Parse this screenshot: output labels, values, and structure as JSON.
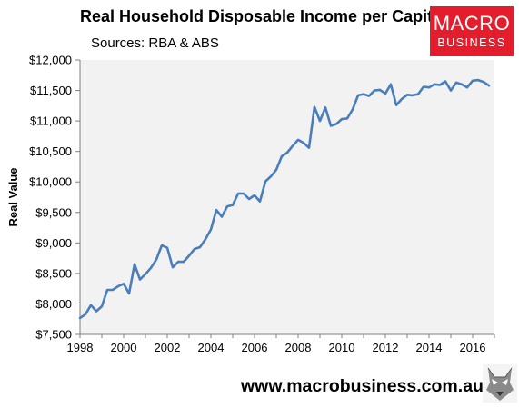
{
  "header": {
    "title": "Real Household Disposable Income per Capita",
    "sources": "Sources: RBA & ABS"
  },
  "logo": {
    "line1": "MACRO",
    "line2": "BUSINESS",
    "color": "#e31d2b"
  },
  "footer": {
    "url": "www.macrobusiness.com.au",
    "mascot_icon": "wolf-icon"
  },
  "chart_data": {
    "type": "line",
    "title": "Real Household Disposable Income per Capita",
    "xlabel": "",
    "ylabel": "Real Value",
    "xlim": [
      1998,
      2017
    ],
    "ylim": [
      7500,
      12000
    ],
    "x_ticks": [
      1998,
      2000,
      2002,
      2004,
      2006,
      2008,
      2010,
      2012,
      2014,
      2016
    ],
    "y_ticks": [
      7500,
      8000,
      8500,
      9000,
      9500,
      10000,
      10500,
      11000,
      11500,
      12000
    ],
    "y_tick_labels": [
      "$7,500",
      "$8,000",
      "$8,500",
      "$9,000",
      "$9,500",
      "$10,000",
      "$10,500",
      "$11,000",
      "$11,500",
      "$12,000"
    ],
    "grid": false,
    "legend": "none",
    "plot_background": "#f2f2f2",
    "line_color": "#4a7ebb",
    "series": [
      {
        "x": [
          1998.0,
          1998.25,
          1998.5,
          1998.75,
          1999.0,
          1999.25,
          1999.5,
          1999.75,
          2000.0,
          2000.25,
          2000.5,
          2000.75,
          2001.0,
          2001.25,
          2001.5,
          2001.75,
          2002.0,
          2002.25,
          2002.5,
          2002.75,
          2003.0,
          2003.25,
          2003.5,
          2003.75,
          2004.0,
          2004.25,
          2004.5,
          2004.75,
          2005.0,
          2005.25,
          2005.5,
          2005.75,
          2006.0,
          2006.25,
          2006.5,
          2006.75,
          2007.0,
          2007.25,
          2007.5,
          2007.75,
          2008.0,
          2008.25,
          2008.5,
          2008.75,
          2009.0,
          2009.25,
          2009.5,
          2009.75,
          2010.0,
          2010.25,
          2010.5,
          2010.75,
          2011.0,
          2011.25,
          2011.5,
          2011.75,
          2012.0,
          2012.25,
          2012.5,
          2012.75,
          2013.0,
          2013.25,
          2013.5,
          2013.75,
          2014.0,
          2014.25,
          2014.5,
          2014.75,
          2015.0,
          2015.25,
          2015.5,
          2015.75,
          2016.0,
          2016.25,
          2016.5,
          2016.75
        ],
        "y": [
          7770,
          7830,
          7980,
          7880,
          7960,
          8230,
          8230,
          8290,
          8330,
          8170,
          8650,
          8400,
          8490,
          8590,
          8730,
          8960,
          8920,
          8600,
          8690,
          8690,
          8790,
          8900,
          8930,
          9060,
          9220,
          9540,
          9430,
          9600,
          9620,
          9810,
          9810,
          9720,
          9780,
          9680,
          10010,
          10090,
          10200,
          10420,
          10480,
          10590,
          10690,
          10640,
          10560,
          11230,
          11000,
          11220,
          10920,
          10950,
          11030,
          11040,
          11190,
          11420,
          11440,
          11410,
          11500,
          11510,
          11450,
          11600,
          11260,
          11360,
          11430,
          11420,
          11440,
          11560,
          11550,
          11600,
          11590,
          11650,
          11500,
          11630,
          11600,
          11550,
          11660,
          11670,
          11640,
          11580
        ]
      }
    ]
  }
}
